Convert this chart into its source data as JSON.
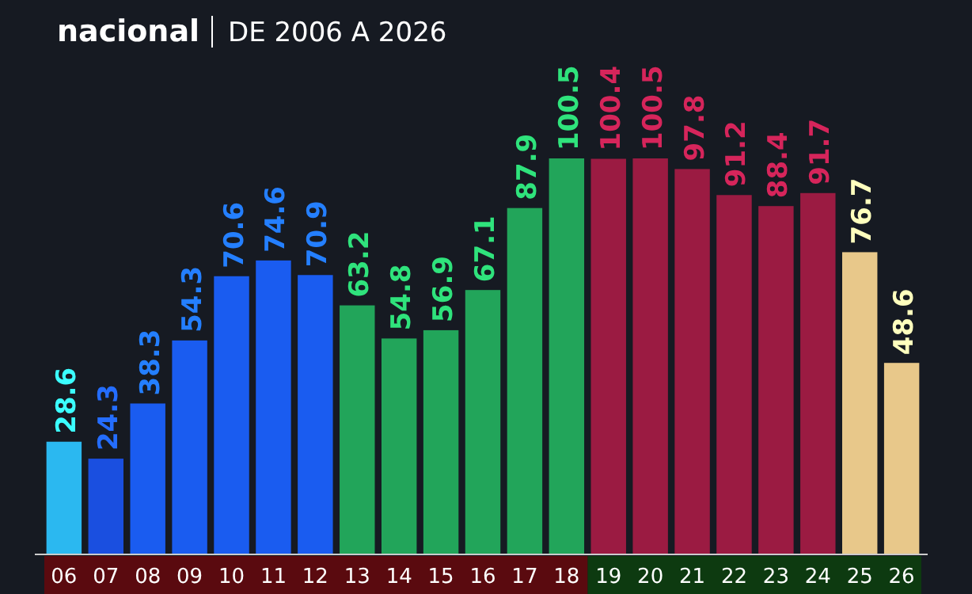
{
  "chart_data": {
    "type": "bar",
    "title": "nacional",
    "subtitle": "DE 2006 A 2026",
    "categories": [
      "06",
      "07",
      "08",
      "09",
      "10",
      "11",
      "12",
      "13",
      "14",
      "15",
      "16",
      "17",
      "18",
      "19",
      "20",
      "21",
      "22",
      "23",
      "24",
      "25",
      "26"
    ],
    "values": [
      28.6,
      24.3,
      38.3,
      54.3,
      70.6,
      74.6,
      70.9,
      63.2,
      54.8,
      56.9,
      67.1,
      87.9,
      100.5,
      100.4,
      100.5,
      97.8,
      91.2,
      88.4,
      91.7,
      76.7,
      48.6
    ],
    "colors": [
      "#2bb8f0",
      "#1a4fe0",
      "#1a5cf0",
      "#1a5cf0",
      "#1a5cf0",
      "#1a5cf0",
      "#1a5cf0",
      "#22a55a",
      "#22a55a",
      "#22a55a",
      "#22a55a",
      "#22a55a",
      "#22a55a",
      "#9b1b42",
      "#9b1b42",
      "#9b1b42",
      "#9b1b42",
      "#9b1b42",
      "#9b1b42",
      "#e8c88a",
      "#e8c88a"
    ],
    "data_labels": true
  }
}
